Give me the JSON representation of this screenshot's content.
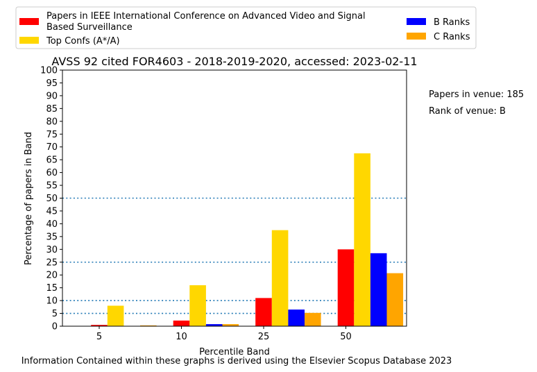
{
  "chart_data": {
    "type": "bar",
    "title": "AVSS 92 cited FOR4603 - 2018-2019-2020, accessed: 2023-02-11",
    "xlabel": "Percentile Band",
    "ylabel": "Percentage of papers in Band",
    "categories": [
      "5",
      "10",
      "25",
      "50"
    ],
    "ylim": [
      0,
      100
    ],
    "yticks": [
      "0",
      "5",
      "10",
      "15",
      "20",
      "25",
      "30",
      "35",
      "40",
      "45",
      "50",
      "55",
      "60",
      "65",
      "70",
      "75",
      "80",
      "85",
      "90",
      "95",
      "100"
    ],
    "series": [
      {
        "name": "Papers in IEEE International Conference on Advanced Video and Signal Based Surveillance",
        "color": "#ff0000",
        "values": [
          0.5,
          2.2,
          11.0,
          30.0
        ]
      },
      {
        "name": "Top Confs (A*/A)",
        "color": "#ffd700",
        "values": [
          8.0,
          16.0,
          37.5,
          67.5
        ]
      },
      {
        "name": "B Ranks",
        "color": "#0000ff",
        "values": [
          0.1,
          0.8,
          6.5,
          28.5
        ]
      },
      {
        "name": "C Ranks",
        "color": "#ffa500",
        "values": [
          0.3,
          0.8,
          5.2,
          20.7
        ]
      }
    ],
    "reference_lines": [
      5,
      10,
      25,
      50
    ],
    "reference_line_color": "#1f77b4",
    "legend_placement": "top",
    "annotations": [
      "Papers in venue: 185",
      "Rank of venue: B"
    ],
    "footer": "Information Contained within these graphs is derived using the Elsevier Scopus Database 2023",
    "grid": false
  }
}
